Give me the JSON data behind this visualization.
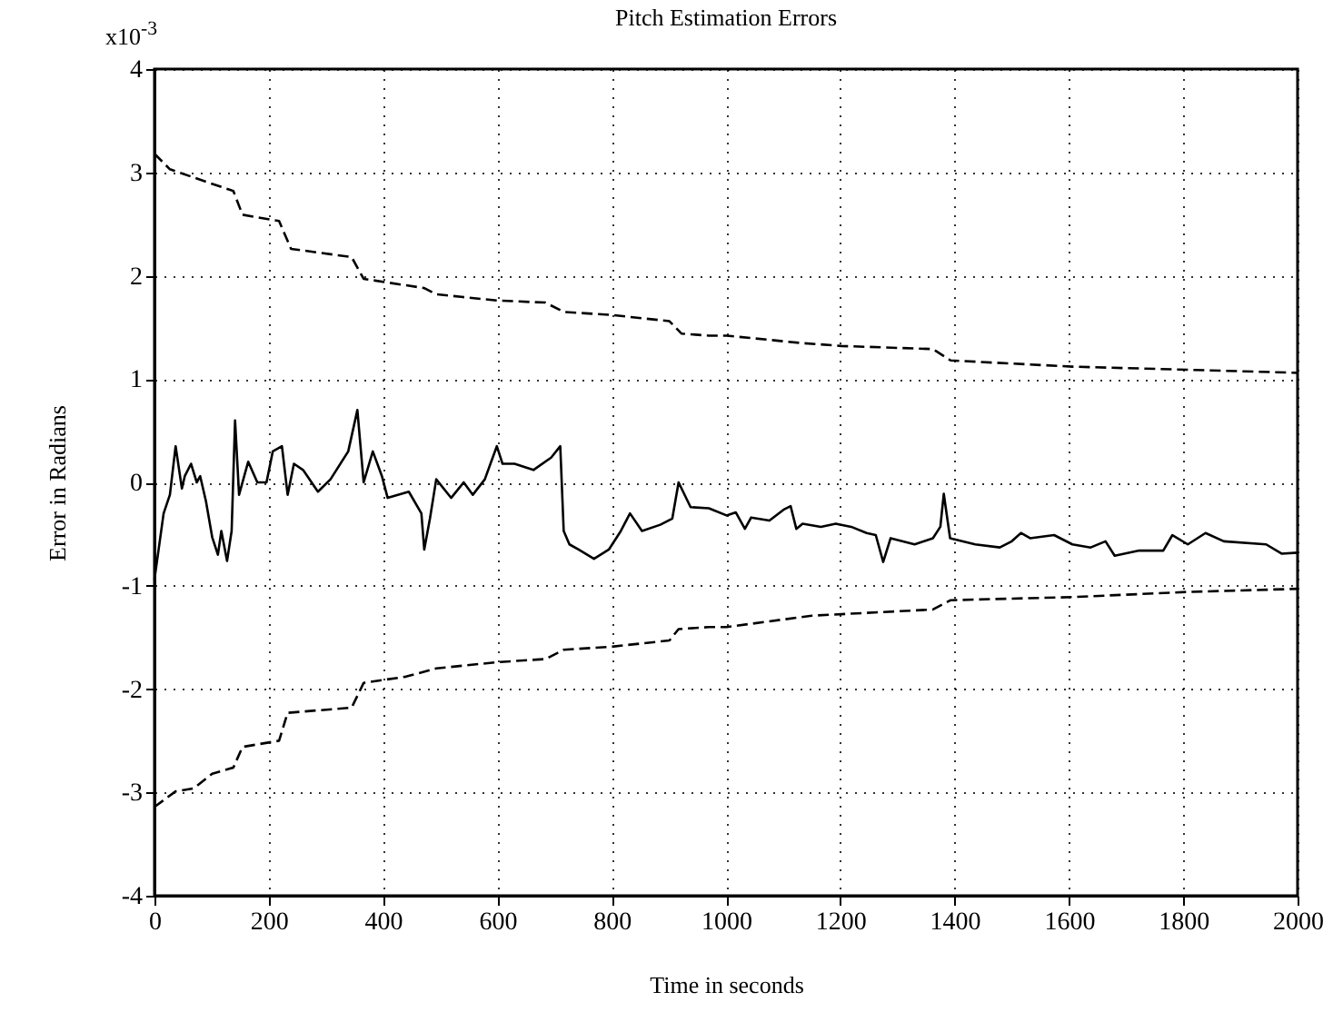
{
  "chart_data": {
    "type": "line",
    "title": "Pitch Estimation Errors",
    "xlabel": "Time in seconds",
    "ylabel": "Error in Radians",
    "annotations": [
      "x10$^{-3}$"
    ],
    "xlim": [
      0,
      2000
    ],
    "xticks": [
      0,
      200,
      400,
      600,
      800,
      1000,
      1200,
      1400,
      1600,
      1800,
      2000
    ],
    "ylim": [
      -4,
      4
    ],
    "yticks": [
      -4,
      -3,
      -2,
      -1,
      0,
      1,
      2,
      3,
      4
    ],
    "grid": true,
    "series": [
      {
        "color": "#000000",
        "line_style": "dashed",
        "x": [
          0,
          27,
          90,
          138,
          154,
          218,
          239,
          345,
          366,
          472,
          493,
          599,
          684,
          716,
          800,
          901,
          922,
          970,
          1001,
          1129,
          1202,
          1362,
          1393,
          1606,
          1808,
          2000
        ],
        "values": [
          3.18,
          3.03,
          2.91,
          2.82,
          2.59,
          2.53,
          2.26,
          2.18,
          1.97,
          1.88,
          1.82,
          1.76,
          1.74,
          1.65,
          1.62,
          1.56,
          1.44,
          1.42,
          1.42,
          1.35,
          1.32,
          1.29,
          1.18,
          1.12,
          1.09,
          1.06
        ]
      },
      {
        "color": "#000000",
        "line_style": "solid",
        "x": [
          0,
          16,
          27,
          37,
          48,
          53,
          64,
          74,
          80,
          90,
          101,
          111,
          117,
          127,
          135,
          141,
          148,
          164,
          180,
          196,
          207,
          223,
          233,
          244,
          260,
          286,
          308,
          339,
          355,
          366,
          382,
          398,
          408,
          445,
          467,
          472,
          482,
          493,
          519,
          541,
          557,
          578,
          599,
          609,
          630,
          663,
          694,
          710,
          716,
          726,
          742,
          769,
          795,
          816,
          832,
          853,
          885,
          906,
          917,
          938,
          970,
          1001,
          1017,
          1033,
          1044,
          1076,
          1102,
          1113,
          1123,
          1134,
          1166,
          1192,
          1219,
          1246,
          1262,
          1275,
          1288,
          1330,
          1362,
          1375,
          1381,
          1392,
          1436,
          1479,
          1500,
          1516,
          1532,
          1574,
          1606,
          1638,
          1664,
          1680,
          1723,
          1765,
          1781,
          1808,
          1839,
          1871,
          1945,
          1972,
          2000
        ],
        "values": [
          -0.94,
          -0.3,
          -0.12,
          0.35,
          -0.06,
          0.06,
          0.18,
          0,
          0.06,
          -0.18,
          -0.53,
          -0.7,
          -0.47,
          -0.76,
          -0.47,
          0.6,
          -0.12,
          0.2,
          0,
          0,
          0.3,
          0.35,
          -0.12,
          0.18,
          0.12,
          -0.09,
          0.03,
          0.3,
          0.7,
          0,
          0.3,
          0.06,
          -0.15,
          -0.09,
          -0.3,
          -0.65,
          -0.35,
          0.03,
          -0.15,
          0,
          -0.12,
          0.03,
          0.35,
          0.18,
          0.18,
          0.12,
          0.24,
          0.35,
          -0.47,
          -0.6,
          -0.65,
          -0.74,
          -0.65,
          -0.47,
          -0.3,
          -0.47,
          -0.41,
          -0.35,
          0,
          -0.24,
          -0.25,
          -0.32,
          -0.29,
          -0.45,
          -0.34,
          -0.37,
          -0.26,
          -0.23,
          -0.45,
          -0.4,
          -0.43,
          -0.4,
          -0.43,
          -0.49,
          -0.51,
          -0.77,
          -0.54,
          -0.6,
          -0.54,
          -0.43,
          -0.11,
          -0.54,
          -0.6,
          -0.63,
          -0.57,
          -0.49,
          -0.54,
          -0.51,
          -0.6,
          -0.63,
          -0.57,
          -0.71,
          -0.66,
          -0.66,
          -0.51,
          -0.6,
          -0.49,
          -0.57,
          -0.6,
          -0.69,
          -0.68
        ]
      },
      {
        "color": "#000000",
        "line_style": "dashed",
        "x": [
          0,
          37,
          69,
          101,
          138,
          154,
          218,
          233,
          345,
          366,
          440,
          493,
          599,
          684,
          716,
          800,
          901,
          917,
          970,
          1001,
          1150,
          1362,
          1393,
          1606,
          1808,
          2000
        ],
        "values": [
          -3.14,
          -2.99,
          -2.96,
          -2.82,
          -2.76,
          -2.56,
          -2.5,
          -2.23,
          -2.18,
          -1.94,
          -1.88,
          -1.8,
          -1.74,
          -1.71,
          -1.62,
          -1.59,
          -1.53,
          -1.42,
          -1.4,
          -1.4,
          -1.29,
          -1.23,
          -1.14,
          -1.11,
          -1.06,
          -1.03
        ]
      }
    ]
  }
}
